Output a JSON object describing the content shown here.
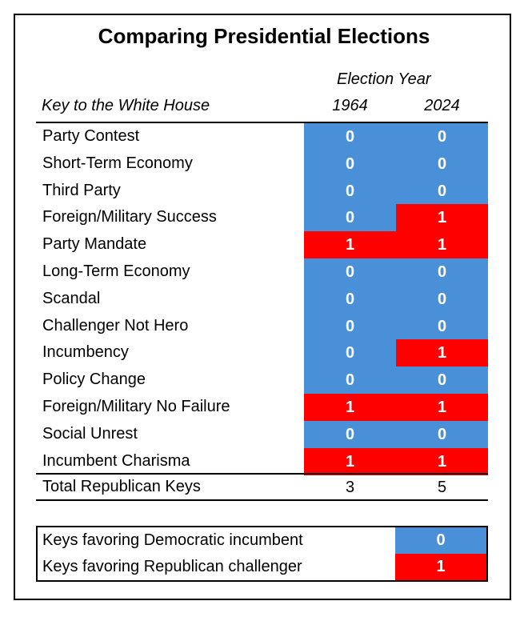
{
  "title": "Comparing Presidential Elections",
  "header": {
    "group": "Election Year",
    "key_col": "Key to the White House"
  },
  "colors": {
    "democratic": "#4a90d9",
    "republican": "#ff0000"
  },
  "chart_data": {
    "type": "table",
    "title": "Comparing Presidential Elections",
    "columns": [
      "1964",
      "2024"
    ],
    "rows": [
      {
        "key": "Party Contest",
        "values": [
          0,
          0
        ]
      },
      {
        "key": "Short-Term Economy",
        "values": [
          0,
          0
        ]
      },
      {
        "key": "Third Party",
        "values": [
          0,
          0
        ]
      },
      {
        "key": "Foreign/Military Success",
        "values": [
          0,
          1
        ]
      },
      {
        "key": "Party Mandate",
        "values": [
          1,
          1
        ]
      },
      {
        "key": "Long-Term Economy",
        "values": [
          0,
          0
        ]
      },
      {
        "key": "Scandal",
        "values": [
          0,
          0
        ]
      },
      {
        "key": "Challenger Not Hero",
        "values": [
          0,
          0
        ]
      },
      {
        "key": "Incumbency",
        "values": [
          0,
          1
        ]
      },
      {
        "key": "Policy Change",
        "values": [
          0,
          0
        ]
      },
      {
        "key": "Foreign/Military No Failure",
        "values": [
          1,
          1
        ]
      },
      {
        "key": "Social Unrest",
        "values": [
          0,
          0
        ]
      },
      {
        "key": "Incumbent Charisma",
        "values": [
          1,
          1
        ]
      }
    ],
    "total": {
      "label": "Total Republican Keys",
      "values": [
        3,
        5
      ]
    }
  },
  "legend": [
    {
      "label": "Keys favoring Democratic incumbent",
      "value": "0"
    },
    {
      "label": "Keys favoring Republican challenger",
      "value": "1"
    }
  ]
}
